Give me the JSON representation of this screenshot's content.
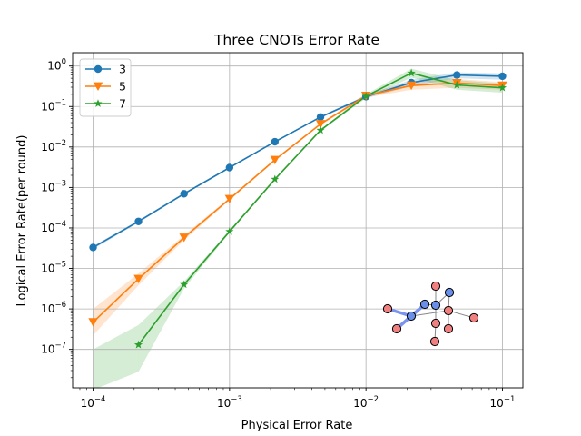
{
  "chart_data": {
    "type": "line",
    "title": "Three CNOTs Error Rate",
    "xlabel": "Physical Error Rate",
    "ylabel": "Logical Error Rate(per round)",
    "xscale": "log",
    "yscale": "log",
    "xlim": [
      0.0001,
      0.1
    ],
    "ylim": [
      1e-08,
      1
    ],
    "grid": true,
    "legend_position": "top-left",
    "xticks": [
      {
        "value": 0.0001,
        "base": "10",
        "exp": "−4"
      },
      {
        "value": 0.001,
        "base": "10",
        "exp": "−3"
      },
      {
        "value": 0.01,
        "base": "10",
        "exp": "−2"
      },
      {
        "value": 0.1,
        "base": "10",
        "exp": "−1"
      }
    ],
    "yticks": [
      {
        "value": 1e-07,
        "base": "10",
        "exp": "−7"
      },
      {
        "value": 1e-06,
        "base": "10",
        "exp": "−6"
      },
      {
        "value": 1e-05,
        "base": "10",
        "exp": "−5"
      },
      {
        "value": 0.0001,
        "base": "10",
        "exp": "−4"
      },
      {
        "value": 0.001,
        "base": "10",
        "exp": "−3"
      },
      {
        "value": 0.01,
        "base": "10",
        "exp": "−2"
      },
      {
        "value": 0.1,
        "base": "10",
        "exp": "−1"
      },
      {
        "value": 1,
        "base": "10",
        "exp": "0"
      }
    ],
    "series": [
      {
        "name": "3",
        "color": "#1f77b4",
        "marker": "circle",
        "x": [
          0.0001,
          0.000215,
          0.000464,
          0.001,
          0.00215,
          0.00464,
          0.01,
          0.0215,
          0.0464,
          0.1
        ],
        "y": [
          3.3e-05,
          0.000145,
          0.0007,
          0.0031,
          0.0135,
          0.055,
          0.175,
          0.39,
          0.6,
          0.56
        ],
        "lower": [
          3e-05,
          0.000135,
          0.00066,
          0.00295,
          0.013,
          0.052,
          0.16,
          0.32,
          0.5,
          0.46
        ],
        "upper": [
          3.6e-05,
          0.000155,
          0.00074,
          0.00325,
          0.014,
          0.058,
          0.19,
          0.46,
          0.7,
          0.66
        ]
      },
      {
        "name": "5",
        "color": "#ff7f0e",
        "marker": "triangle-down",
        "x": [
          0.0001,
          0.000215,
          0.000464,
          0.001,
          0.00215,
          0.00464,
          0.01,
          0.0215,
          0.0464,
          0.1
        ],
        "y": [
          4.7e-07,
          5.5e-06,
          5.8e-05,
          0.00052,
          0.0048,
          0.037,
          0.185,
          0.33,
          0.38,
          0.33
        ],
        "lower": [
          2.2e-07,
          3.8e-06,
          5e-05,
          0.00048,
          0.0045,
          0.035,
          0.165,
          0.26,
          0.29,
          0.26
        ],
        "upper": [
          1e-06,
          7.5e-06,
          6.6e-05,
          0.00056,
          0.0051,
          0.039,
          0.205,
          0.41,
          0.48,
          0.4
        ]
      },
      {
        "name": "7",
        "color": "#2ca02c",
        "marker": "star",
        "x": [
          0.000215,
          0.000464,
          0.001,
          0.00215,
          0.00464,
          0.01,
          0.0215,
          0.0464,
          0.1
        ],
        "y": [
          1.3e-07,
          4e-06,
          8.2e-05,
          0.0016,
          0.026,
          0.18,
          0.67,
          0.34,
          0.29
        ],
        "lower": [
          2.8e-08,
          3.2e-06,
          7.6e-05,
          0.0015,
          0.0245,
          0.16,
          0.52,
          0.26,
          0.22
        ],
        "upper": [
          4e-07,
          4.8e-06,
          8.8e-05,
          0.0017,
          0.0275,
          0.2,
          0.86,
          0.45,
          0.37
        ]
      }
    ],
    "extra_band": {
      "color": "#2ca02c",
      "x": [
        0.0001,
        0.000215
      ],
      "lower": [
        1e-08,
        2.8e-08
      ],
      "upper": [
        1e-07,
        4e-07
      ]
    }
  },
  "inset": {
    "name": "qubit-layout-diagram",
    "node_colors": {
      "data": "#f08080",
      "ancilla": "#6a8fe8"
    }
  }
}
